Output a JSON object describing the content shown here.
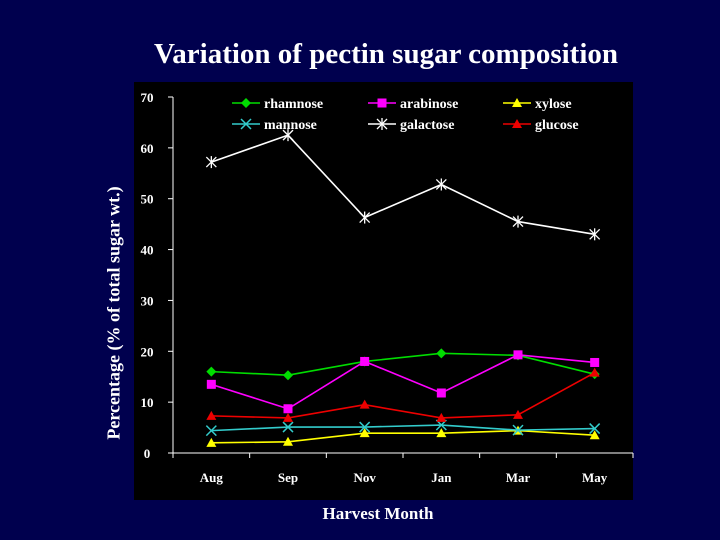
{
  "slide": {
    "title": "Variation of pectin sugar composition"
  },
  "chart_data": {
    "type": "line",
    "title": "Variation of pectin sugar composition",
    "xlabel": "Harvest Month",
    "ylabel": "Percentage (% of total sugar wt.)",
    "categories": [
      "Aug",
      "Sep",
      "Nov",
      "Jan",
      "Mar",
      "May"
    ],
    "ylim": [
      0,
      70
    ],
    "yticks": [
      0,
      10,
      20,
      30,
      40,
      50,
      60,
      70
    ],
    "grid": false,
    "legend_position": "top",
    "series": [
      {
        "name": "rhamnose",
        "color": "#00dd00",
        "marker": "diamond",
        "values": [
          16.0,
          15.3,
          18.0,
          19.6,
          19.2,
          15.5
        ]
      },
      {
        "name": "arabinose",
        "color": "#ff00ff",
        "marker": "square",
        "values": [
          13.5,
          8.7,
          18.0,
          11.8,
          19.3,
          17.8
        ]
      },
      {
        "name": "xylose",
        "color": "#ffff00",
        "marker": "triangle",
        "values": [
          2.0,
          2.2,
          3.9,
          3.9,
          4.4,
          3.5
        ]
      },
      {
        "name": "mannose",
        "color": "#33cccc",
        "marker": "x",
        "values": [
          4.4,
          5.1,
          5.1,
          5.5,
          4.5,
          4.8
        ]
      },
      {
        "name": "galactose",
        "color": "#ffffff",
        "marker": "star",
        "values": [
          57.2,
          62.5,
          46.3,
          52.8,
          45.5,
          43.0
        ]
      },
      {
        "name": "glucose",
        "color": "#ee0000",
        "marker": "triangle",
        "values": [
          7.3,
          6.9,
          9.5,
          6.9,
          7.5,
          15.8
        ]
      }
    ]
  }
}
